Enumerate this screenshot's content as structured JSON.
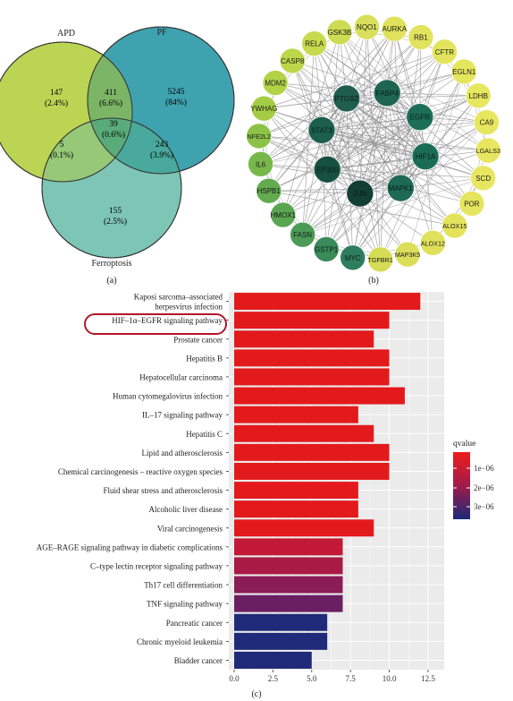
{
  "panel_a": {
    "caption": "(a)",
    "sets": [
      {
        "name": "APD",
        "color": "#b8d24a"
      },
      {
        "name": "PF",
        "color": "#2f9aa8"
      },
      {
        "name": "Ferroptosis",
        "color": "#6fbfad"
      }
    ],
    "regions": [
      {
        "id": "apd_only",
        "count": "147",
        "pct": "(2.4%)"
      },
      {
        "id": "pf_only",
        "count": "5245",
        "pct": "(84%)"
      },
      {
        "id": "ferro_only",
        "count": "155",
        "pct": "(2.5%)"
      },
      {
        "id": "apd_pf",
        "count": "411",
        "pct": "(6.6%)"
      },
      {
        "id": "all",
        "count": "39",
        "pct": "(0.6%)"
      },
      {
        "id": "apd_ferro",
        "count": "5",
        "pct": "(0.1%)"
      },
      {
        "id": "pf_ferro",
        "count": "243",
        "pct": "(3.9%)"
      }
    ]
  },
  "panel_b": {
    "caption": "(b)",
    "outer_nodes": [
      {
        "label": "NQO1",
        "color": "#d9df5a"
      },
      {
        "label": "AURKA",
        "color": "#dfe25a"
      },
      {
        "label": "RB1",
        "color": "#e1e35c"
      },
      {
        "label": "CFTR",
        "color": "#e3e45d"
      },
      {
        "label": "EGLN1",
        "color": "#e6e55e"
      },
      {
        "label": "LDHB",
        "color": "#e7e65f"
      },
      {
        "label": "CA9",
        "color": "#e8e65f"
      },
      {
        "label": "LGALS3",
        "color": "#e8e660"
      },
      {
        "label": "SCD",
        "color": "#e8e660"
      },
      {
        "label": "POR",
        "color": "#e6e55e"
      },
      {
        "label": "ALOX15",
        "color": "#e3e35c"
      },
      {
        "label": "ALOX12",
        "color": "#e0e15a"
      },
      {
        "label": "MAP3K5",
        "color": "#dbde58"
      },
      {
        "label": "TGFBR1",
        "color": "#d6dc56"
      },
      {
        "label": "MYC",
        "color": "#2e7d5c"
      },
      {
        "label": "GSTP1",
        "color": "#3a8a5a"
      },
      {
        "label": "FASN",
        "color": "#4b9a56"
      },
      {
        "label": "HMOX1",
        "color": "#5aa552"
      },
      {
        "label": "HSPB1",
        "color": "#62ab4f"
      },
      {
        "label": "IL6",
        "color": "#78b84b"
      },
      {
        "label": "NFE2L2",
        "color": "#8bc247"
      },
      {
        "label": "YWHAG",
        "color": "#a4cd45"
      },
      {
        "label": "MDM2",
        "color": "#b2d346"
      },
      {
        "label": "CASP8",
        "color": "#bdd74a"
      },
      {
        "label": "RELA",
        "color": "#c6da4e"
      },
      {
        "label": "GSK3B",
        "color": "#cddc52"
      }
    ],
    "inner_nodes": [
      {
        "label": "PTGS2",
        "color": "#1f5e4e"
      },
      {
        "label": "FABP4",
        "color": "#1e6652"
      },
      {
        "label": "EGFR",
        "color": "#1c6e56"
      },
      {
        "label": "HIF1A",
        "color": "#1a6d55"
      },
      {
        "label": "MAPK1",
        "color": "#1e6a54"
      },
      {
        "label": "JUN",
        "color": "#123f33"
      },
      {
        "label": "EP300",
        "color": "#17503f"
      },
      {
        "label": "STAT3",
        "color": "#1b5f4c"
      }
    ]
  },
  "panel_c": {
    "caption": "(c)",
    "chart_data": {
      "type": "bar",
      "orientation": "horizontal",
      "categories": [
        [
          "Kaposi sarcoma–associated",
          "herpesvirus infection"
        ],
        [
          "HIF–1α–EGFR signaling pathway"
        ],
        [
          "Prostate cancer"
        ],
        [
          "Hepatitis B"
        ],
        [
          "Hepatocellular carcinoma"
        ],
        [
          "Human cytomegalovirus infection"
        ],
        [
          "IL–17 signaling pathway"
        ],
        [
          "Hepatitis C"
        ],
        [
          "Lipid and atherosclerosis"
        ],
        [
          "Chemical carcinogenesis – reactive oxygen species"
        ],
        [
          "Fluid shear stress and atherosclerosis"
        ],
        [
          "Alcoholic liver disease"
        ],
        [
          "Viral carcinogenesis"
        ],
        [
          "AGE–RAGE signaling pathway in diabetic complications"
        ],
        [
          "C–type lectin receptor signaling pathway"
        ],
        [
          "Th17 cell differentiation"
        ],
        [
          "TNF signaling pathway"
        ],
        [
          "Pancreatic cancer"
        ],
        [
          "Chronic myeloid leukemia"
        ],
        [
          "Bladder cancer"
        ]
      ],
      "values": [
        12,
        10,
        9,
        10,
        10,
        11,
        8,
        9,
        10,
        10,
        8,
        8,
        9,
        7,
        7,
        7,
        7,
        6,
        6,
        5
      ],
      "colors": [
        "#e31a1c",
        "#e31a1c",
        "#e31a1c",
        "#e31a1c",
        "#e31a1c",
        "#e31a1c",
        "#e31a1c",
        "#e31a1c",
        "#e31a1c",
        "#e31a1c",
        "#e31a1c",
        "#e31a1c",
        "#e31a1c",
        "#c21a36",
        "#a91a45",
        "#8a1d55",
        "#6b1f63",
        "#1f2a78",
        "#1f2a78",
        "#1f2a78"
      ],
      "highlighted_index": 1,
      "xlim": [
        0,
        12.6
      ],
      "xticks": [
        "0.0",
        "2.5",
        "5.0",
        "7.5",
        "10.0",
        "12.5"
      ],
      "xtick_values": [
        0,
        2.5,
        5,
        7.5,
        10,
        12.5
      ],
      "legend": {
        "title": "qvalue",
        "labels": [
          "1e−06",
          "2e−06",
          "3e−06"
        ],
        "gradient": [
          "#ee1c1c",
          "#a01b4a",
          "#1b2a7a"
        ]
      },
      "grid": true
    }
  }
}
